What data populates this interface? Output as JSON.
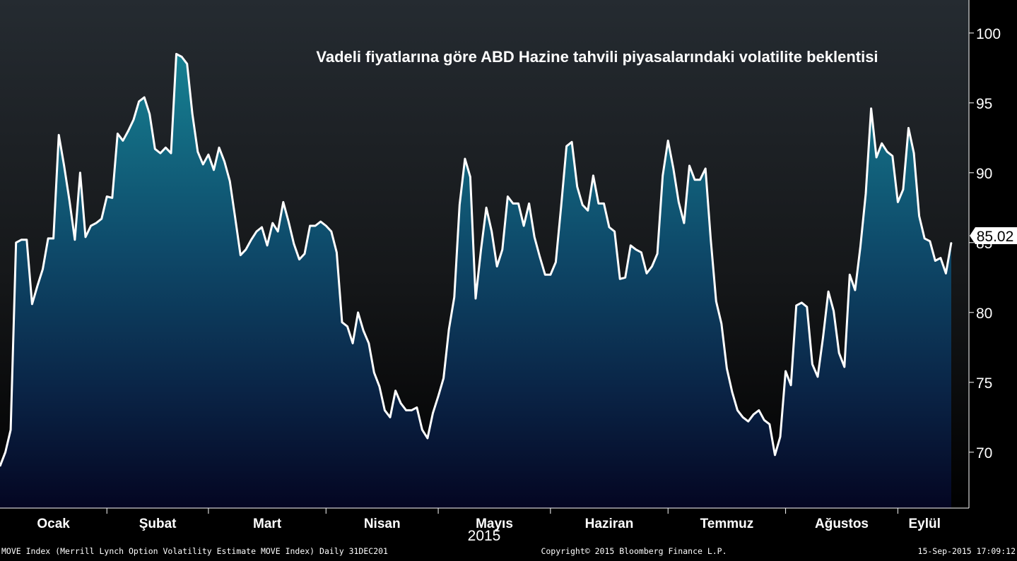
{
  "chart_data": {
    "type": "area",
    "title": "Vadeli fiyatlarına göre ABD Hazine tahvili piyasalarındaki volatilite beklentisi",
    "ylim": [
      66,
      101
    ],
    "yticks": [
      70,
      75,
      80,
      85,
      90,
      95,
      100
    ],
    "y_axis_position": "right",
    "month_labels": [
      "Ocak",
      "Şubat",
      "Mart",
      "Nisan",
      "Mayıs",
      "Haziran",
      "Temmuz",
      "Ağustos",
      "Eylül"
    ],
    "month_ticks": [
      0,
      20,
      39,
      61,
      82,
      103,
      125,
      147,
      168
    ],
    "year_label": "2015",
    "last_value": "85.02",
    "series": [
      {
        "values": [
          69.0,
          70.0,
          71.6,
          85.0,
          85.2,
          85.2,
          80.6,
          81.9,
          83.1,
          85.3,
          85.3,
          92.7,
          90.5,
          88.0,
          85.2,
          90.0,
          85.4,
          86.2,
          86.4,
          86.7,
          88.3,
          88.2,
          92.8,
          92.3,
          93.0,
          93.8,
          95.1,
          95.4,
          94.2,
          91.7,
          91.4,
          91.8,
          91.4,
          98.5,
          98.3,
          97.8,
          94.2,
          91.5,
          90.6,
          91.3,
          90.2,
          91.8,
          90.8,
          89.4,
          86.8,
          84.1,
          84.5,
          85.2,
          85.8,
          86.1,
          84.8,
          86.4,
          85.8,
          87.9,
          86.5,
          84.9,
          83.8,
          84.2,
          86.2,
          86.2,
          86.5,
          86.2,
          85.8,
          84.3,
          79.3,
          79.0,
          77.8,
          80.0,
          78.7,
          77.8,
          75.7,
          74.7,
          73.0,
          72.5,
          74.4,
          73.5,
          73.0,
          73.0,
          73.2,
          71.6,
          71.0,
          72.8,
          74.0,
          75.3,
          78.8,
          81.1,
          87.7,
          91.0,
          89.7,
          81.0,
          84.5,
          87.5,
          85.8,
          83.3,
          84.5,
          88.3,
          87.8,
          87.8,
          86.2,
          87.8,
          85.4,
          84.0,
          82.7,
          82.7,
          83.6,
          87.6,
          91.9,
          92.2,
          89.0,
          87.7,
          87.3,
          89.8,
          87.8,
          87.8,
          86.1,
          85.8,
          82.4,
          82.5,
          84.8,
          84.5,
          84.3,
          82.8,
          83.3,
          84.2,
          89.8,
          92.3,
          90.3,
          87.9,
          86.4,
          90.5,
          89.5,
          89.5,
          90.3,
          85.2,
          80.8,
          79.2,
          76.0,
          74.3,
          73.0,
          72.5,
          72.2,
          72.7,
          73.0,
          72.3,
          72.0,
          69.8,
          71.1,
          75.8,
          74.8,
          80.5,
          80.7,
          80.4,
          76.3,
          75.4,
          78.2,
          81.5,
          80.1,
          77.1,
          76.1,
          82.7,
          81.6,
          84.7,
          88.5,
          94.6,
          91.1,
          92.1,
          91.5,
          91.2,
          87.9,
          88.8,
          93.2,
          91.4,
          86.9,
          85.3,
          85.1,
          83.7,
          83.9,
          82.8,
          85.0
        ]
      }
    ]
  },
  "footer": {
    "left": "MOVE Index (Merrill Lynch Option Volatility Estimate MOVE Index)  Daily 31DEC201",
    "center": "Copyright© 2015 Bloomberg Finance L.P.",
    "right": "15-Sep-2015 17:09:12"
  },
  "colors": {
    "background_top": "#242a30",
    "background_bottom": "#000000",
    "area_top": "#157c8d",
    "area_bottom": "#040a24",
    "line": "#ffffff",
    "text": "#ffffff"
  }
}
